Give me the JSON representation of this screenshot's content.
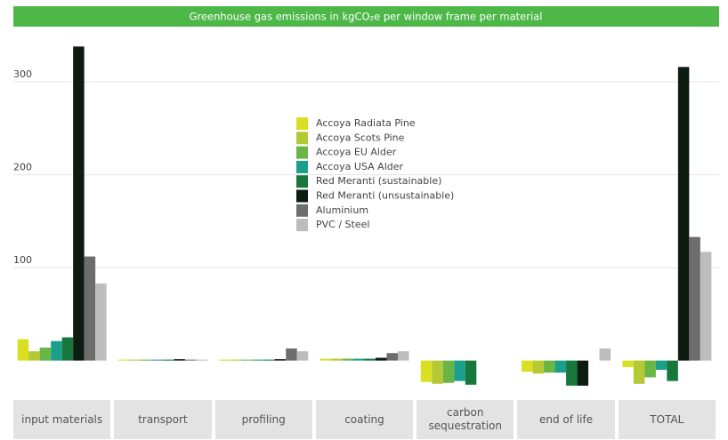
{
  "chart_data": {
    "type": "bar",
    "title": "Greenhouse gas emissions in kgCO₂e per window frame per material",
    "categories": [
      "input materials",
      "transport",
      "profiling",
      "coating",
      "carbon sequestration",
      "end of life",
      "TOTAL"
    ],
    "series": [
      {
        "name": "Accoya Radiata Pine",
        "color": "#d8e021",
        "values": [
          23,
          1,
          1,
          2,
          -23,
          -12,
          -7
        ]
      },
      {
        "name": "Accoya Scots Pine",
        "color": "#b5c934",
        "values": [
          10,
          1,
          1,
          2,
          -25,
          -14,
          -25
        ]
      },
      {
        "name": "Accoya EU Alder",
        "color": "#69b545",
        "values": [
          14,
          1,
          1,
          2,
          -24,
          -13,
          -18
        ]
      },
      {
        "name": "Accoya USA Alder",
        "color": "#1b9e8a",
        "values": [
          21,
          1,
          1,
          2,
          -22,
          -13,
          -10
        ]
      },
      {
        "name": "Red Meranti (sustainable)",
        "color": "#18773d",
        "values": [
          25,
          1,
          1,
          2,
          -26,
          -27,
          -22
        ]
      },
      {
        "name": "Red Meranti (unsustainable)",
        "color": "#0c1c10",
        "values": [
          338,
          1.5,
          1.5,
          3,
          0,
          -27,
          316
        ]
      },
      {
        "name": "Aluminium",
        "color": "#6d6d6d",
        "values": [
          112,
          1,
          13,
          8,
          0,
          0,
          133
        ]
      },
      {
        "name": "PVC / Steel",
        "color": "#bdbdbd",
        "values": [
          83,
          1,
          10,
          10,
          0,
          13,
          117
        ]
      }
    ],
    "ylim": [
      -30,
      345
    ],
    "yticks": [
      100,
      200,
      300
    ],
    "grid": true,
    "legend": "center"
  }
}
